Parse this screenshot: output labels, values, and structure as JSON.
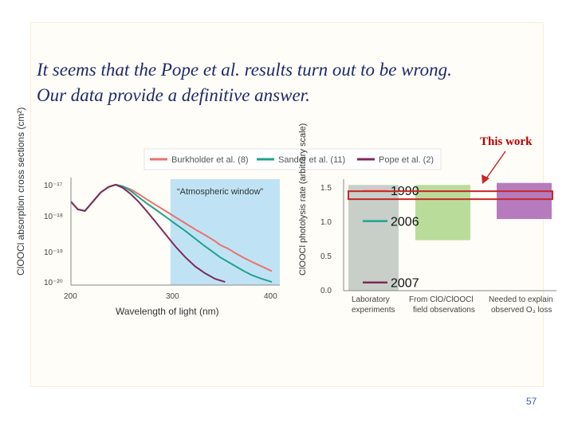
{
  "slide": {
    "headline_line1": "It seems that the Pope et al. results turn out to be wrong.",
    "headline_line2": "Our data provide a definitive answer.",
    "callout": "This work",
    "page_number": "57",
    "accent_color": "#b40000"
  },
  "chart_data": [
    {
      "type": "line",
      "legend": [
        "Burkholder et al. (8)",
        "Sander et al. (11)",
        "Pope et al. (2)"
      ],
      "legend_placement": "top",
      "xlabel": "Wavelength of light (nm)",
      "ylabel": "ClOOCl absorption cross sections (cm²)",
      "xlim": [
        200,
        410
      ],
      "xticks": [
        "200",
        "300",
        "400"
      ],
      "y_scale": "log",
      "yticks": [
        "10⁻¹⁷",
        "10⁻¹⁸",
        "10⁻¹⁹",
        "10⁻²⁰"
      ],
      "annotation": "“Atmospheric window”",
      "shaded_region": [
        300,
        410
      ],
      "series": [
        {
          "name": "Burkholder et al. (8)",
          "color": "#e8736c",
          "x": [
            200,
            207,
            214,
            222,
            230,
            238,
            245,
            252,
            260,
            268,
            276,
            285,
            295,
            305,
            315,
            325,
            335,
            345,
            350,
            358,
            366,
            374,
            382,
            392,
            402
          ],
          "y": [
            -17.6,
            -17.85,
            -17.9,
            -17.6,
            -17.3,
            -17.12,
            -17.05,
            -17.1,
            -17.2,
            -17.35,
            -17.52,
            -17.7,
            -17.9,
            -18.1,
            -18.3,
            -18.5,
            -18.68,
            -18.88,
            -19.0,
            -19.12,
            -19.28,
            -19.42,
            -19.55,
            -19.7,
            -19.85
          ]
        },
        {
          "name": "Sander et al. (11)",
          "color": "#1fa38d",
          "x": [
            200,
            207,
            214,
            222,
            230,
            238,
            245,
            252,
            260,
            268,
            276,
            285,
            295,
            305,
            315,
            325,
            335,
            345,
            350,
            358,
            366,
            374,
            382,
            392,
            402
          ],
          "y": [
            -17.6,
            -17.85,
            -17.9,
            -17.6,
            -17.3,
            -17.12,
            -17.05,
            -17.1,
            -17.25,
            -17.45,
            -17.65,
            -17.85,
            -18.08,
            -18.32,
            -18.55,
            -18.8,
            -19.05,
            -19.28,
            -19.4,
            -19.55,
            -19.7,
            -19.85,
            -19.98,
            -20.1,
            -20.2
          ]
        },
        {
          "name": "Pope et al. (2)",
          "color": "#7d2b5a",
          "x": [
            200,
            207,
            214,
            222,
            230,
            238,
            245,
            252,
            260,
            268,
            276,
            285,
            295,
            305,
            315,
            325,
            335,
            345,
            355
          ],
          "y": [
            -17.6,
            -17.85,
            -17.9,
            -17.6,
            -17.3,
            -17.12,
            -17.05,
            -17.15,
            -17.35,
            -17.6,
            -17.9,
            -18.25,
            -18.65,
            -19.05,
            -19.4,
            -19.7,
            -19.92,
            -20.1,
            -20.2
          ]
        }
      ]
    },
    {
      "type": "bar",
      "ylabel": "ClOOCl photolysis rate (arbitrary scale)",
      "ylim": [
        0,
        1.6
      ],
      "yticks": [
        "0.0",
        "0.5",
        "1.0",
        "1.5"
      ],
      "categories": [
        "Laboratory experiments",
        "From ClO/ClOOCl field observations",
        "Needed to explain observed O₃ loss"
      ],
      "bars": [
        {
          "category": "Laboratory experiments",
          "low": 0.0,
          "high": 1.55,
          "color": "#c7cfc8"
        },
        {
          "category": "From ClO/ClOOCl field observations",
          "low": 0.74,
          "high": 1.55,
          "color": "#b9dc9a"
        },
        {
          "category": "Needed to explain observed O₃ loss",
          "low": 1.05,
          "high": 1.58,
          "color": "#b67bbd"
        }
      ],
      "markers": [
        {
          "label": "1990",
          "value": 1.47,
          "color": "#f0a3a3"
        },
        {
          "label": "2006",
          "value": 1.02,
          "color": "#1fa38d"
        },
        {
          "label": "2007",
          "value": 0.12,
          "color": "#7d2b5a"
        }
      ],
      "highlight_value": 1.4
    }
  ]
}
